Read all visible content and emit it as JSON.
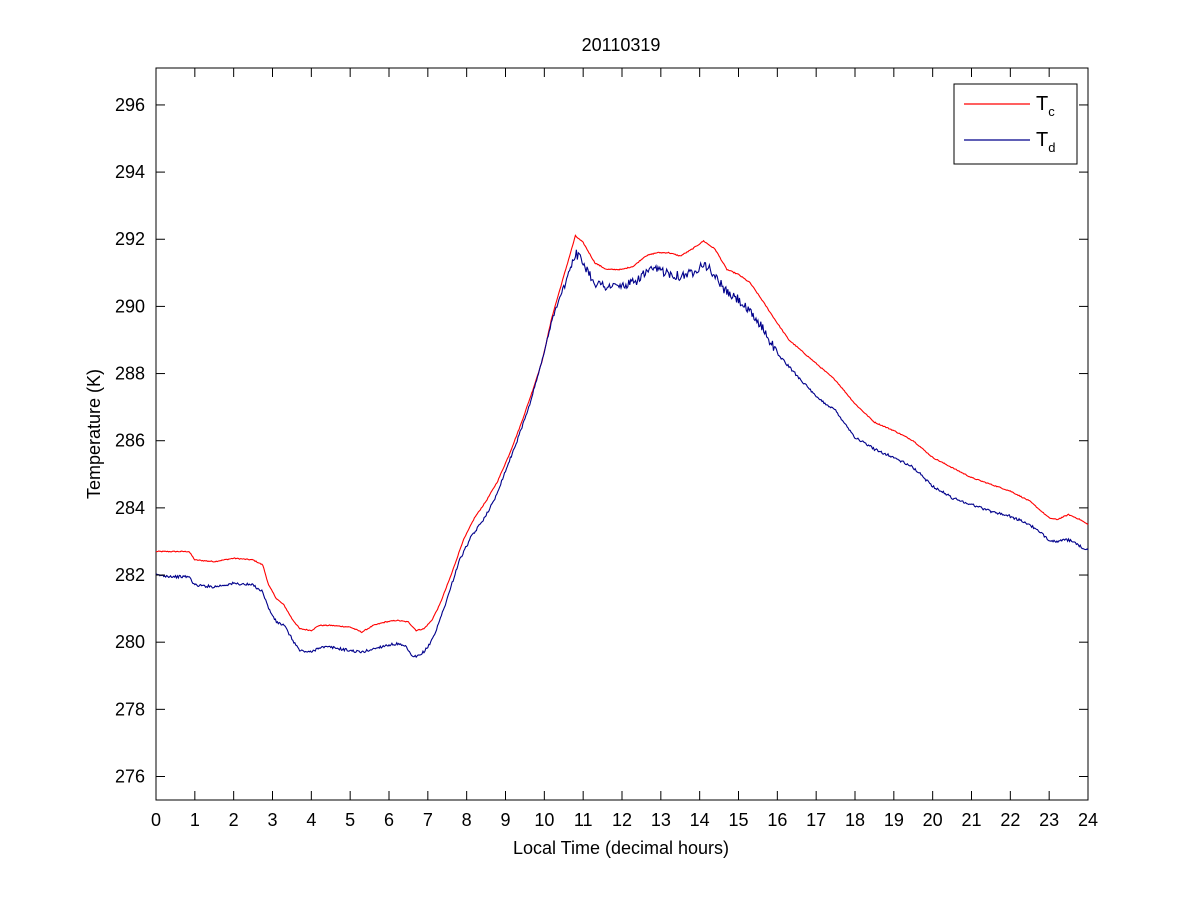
{
  "chart_data": {
    "type": "line",
    "title": "20110319",
    "xlabel": "Local Time (decimal hours)",
    "ylabel": "Temperature (K)",
    "xlim": [
      0,
      24
    ],
    "ylim": [
      275.3,
      297.1
    ],
    "xticks": [
      0,
      1,
      2,
      3,
      4,
      5,
      6,
      7,
      8,
      9,
      10,
      11,
      12,
      13,
      14,
      15,
      16,
      17,
      18,
      19,
      20,
      21,
      22,
      23,
      24
    ],
    "yticks": [
      276,
      278,
      280,
      282,
      284,
      286,
      288,
      290,
      292,
      294,
      296
    ],
    "grid": false,
    "legend_position": "top-right",
    "series": [
      {
        "name": "Tc",
        "name_main": "T",
        "name_sub": "c",
        "color": "#ff0000",
        "points": [
          [
            0,
            282.7
          ],
          [
            0.5,
            282.7
          ],
          [
            0.85,
            282.7
          ],
          [
            1.0,
            282.45
          ],
          [
            1.5,
            282.4
          ],
          [
            2.0,
            282.5
          ],
          [
            2.5,
            282.45
          ],
          [
            2.75,
            282.3
          ],
          [
            2.9,
            281.7
          ],
          [
            3.1,
            281.3
          ],
          [
            3.3,
            281.1
          ],
          [
            3.5,
            280.7
          ],
          [
            3.7,
            280.4
          ],
          [
            4.0,
            280.35
          ],
          [
            4.2,
            280.5
          ],
          [
            4.5,
            280.5
          ],
          [
            5.0,
            280.45
          ],
          [
            5.3,
            280.3
          ],
          [
            5.6,
            280.5
          ],
          [
            5.9,
            280.6
          ],
          [
            6.2,
            280.65
          ],
          [
            6.5,
            280.6
          ],
          [
            6.7,
            280.35
          ],
          [
            6.9,
            280.4
          ],
          [
            7.1,
            280.65
          ],
          [
            7.3,
            281.1
          ],
          [
            7.6,
            282.0
          ],
          [
            7.9,
            283.0
          ],
          [
            8.2,
            283.7
          ],
          [
            8.5,
            284.2
          ],
          [
            8.8,
            284.8
          ],
          [
            9.1,
            285.6
          ],
          [
            9.4,
            286.5
          ],
          [
            9.7,
            287.5
          ],
          [
            9.95,
            288.4
          ],
          [
            10.2,
            289.7
          ],
          [
            10.5,
            290.9
          ],
          [
            10.8,
            292.1
          ],
          [
            11.0,
            291.9
          ],
          [
            11.3,
            291.3
          ],
          [
            11.6,
            291.1
          ],
          [
            12.0,
            291.1
          ],
          [
            12.3,
            291.2
          ],
          [
            12.6,
            291.5
          ],
          [
            12.9,
            291.6
          ],
          [
            13.2,
            291.6
          ],
          [
            13.5,
            291.5
          ],
          [
            13.8,
            291.7
          ],
          [
            14.1,
            291.95
          ],
          [
            14.4,
            291.7
          ],
          [
            14.7,
            291.1
          ],
          [
            15.0,
            290.95
          ],
          [
            15.3,
            290.7
          ],
          [
            15.6,
            290.2
          ],
          [
            16.0,
            289.5
          ],
          [
            16.3,
            289.0
          ],
          [
            16.7,
            288.6
          ],
          [
            17.0,
            288.3
          ],
          [
            17.5,
            287.8
          ],
          [
            18.0,
            287.1
          ],
          [
            18.5,
            286.55
          ],
          [
            19.0,
            286.3
          ],
          [
            19.5,
            286.0
          ],
          [
            20.0,
            285.5
          ],
          [
            20.5,
            285.2
          ],
          [
            21.0,
            284.9
          ],
          [
            21.5,
            284.7
          ],
          [
            22.0,
            284.5
          ],
          [
            22.5,
            284.2
          ],
          [
            23.0,
            283.7
          ],
          [
            23.2,
            283.65
          ],
          [
            23.5,
            283.8
          ],
          [
            23.8,
            283.65
          ],
          [
            24.0,
            283.5
          ]
        ]
      },
      {
        "name": "Td",
        "name_main": "T",
        "name_sub": "d",
        "color": "#00008b",
        "points": [
          [
            0,
            282.0
          ],
          [
            0.5,
            281.95
          ],
          [
            0.85,
            281.95
          ],
          [
            1.0,
            281.7
          ],
          [
            1.5,
            281.65
          ],
          [
            2.0,
            281.75
          ],
          [
            2.5,
            281.7
          ],
          [
            2.75,
            281.5
          ],
          [
            2.9,
            281.0
          ],
          [
            3.1,
            280.6
          ],
          [
            3.3,
            280.5
          ],
          [
            3.5,
            280.1
          ],
          [
            3.7,
            279.75
          ],
          [
            4.0,
            279.7
          ],
          [
            4.2,
            279.85
          ],
          [
            4.5,
            279.85
          ],
          [
            5.0,
            279.75
          ],
          [
            5.3,
            279.7
          ],
          [
            5.6,
            279.8
          ],
          [
            5.9,
            279.9
          ],
          [
            6.2,
            279.95
          ],
          [
            6.45,
            279.85
          ],
          [
            6.6,
            279.55
          ],
          [
            6.8,
            279.6
          ],
          [
            7.0,
            279.85
          ],
          [
            7.2,
            280.3
          ],
          [
            7.5,
            281.3
          ],
          [
            7.8,
            282.4
          ],
          [
            8.1,
            283.1
          ],
          [
            8.4,
            283.6
          ],
          [
            8.7,
            284.2
          ],
          [
            9.0,
            285.1
          ],
          [
            9.3,
            286.0
          ],
          [
            9.6,
            287.0
          ],
          [
            9.9,
            288.2
          ],
          [
            10.2,
            289.6
          ],
          [
            10.5,
            290.6
          ],
          [
            10.8,
            291.6
          ],
          [
            11.0,
            291.3
          ],
          [
            11.3,
            290.7
          ],
          [
            11.6,
            290.6
          ],
          [
            12.0,
            290.6
          ],
          [
            12.3,
            290.7
          ],
          [
            12.6,
            291.0
          ],
          [
            12.9,
            291.1
          ],
          [
            13.2,
            291.0
          ],
          [
            13.5,
            290.9
          ],
          [
            13.8,
            291.0
          ],
          [
            14.1,
            291.3
          ],
          [
            14.4,
            290.9
          ],
          [
            14.7,
            290.4
          ],
          [
            15.0,
            290.2
          ],
          [
            15.3,
            289.8
          ],
          [
            15.6,
            289.4
          ],
          [
            16.0,
            288.6
          ],
          [
            16.3,
            288.2
          ],
          [
            16.7,
            287.7
          ],
          [
            17.0,
            287.3
          ],
          [
            17.5,
            286.9
          ],
          [
            18.0,
            286.1
          ],
          [
            18.5,
            285.75
          ],
          [
            19.0,
            285.5
          ],
          [
            19.5,
            285.2
          ],
          [
            20.0,
            284.65
          ],
          [
            20.5,
            284.3
          ],
          [
            21.0,
            284.1
          ],
          [
            21.5,
            283.9
          ],
          [
            22.0,
            283.75
          ],
          [
            22.5,
            283.5
          ],
          [
            23.0,
            283.05
          ],
          [
            23.2,
            283.0
          ],
          [
            23.5,
            283.05
          ],
          [
            23.8,
            282.85
          ],
          [
            24.0,
            282.75
          ]
        ]
      }
    ]
  }
}
